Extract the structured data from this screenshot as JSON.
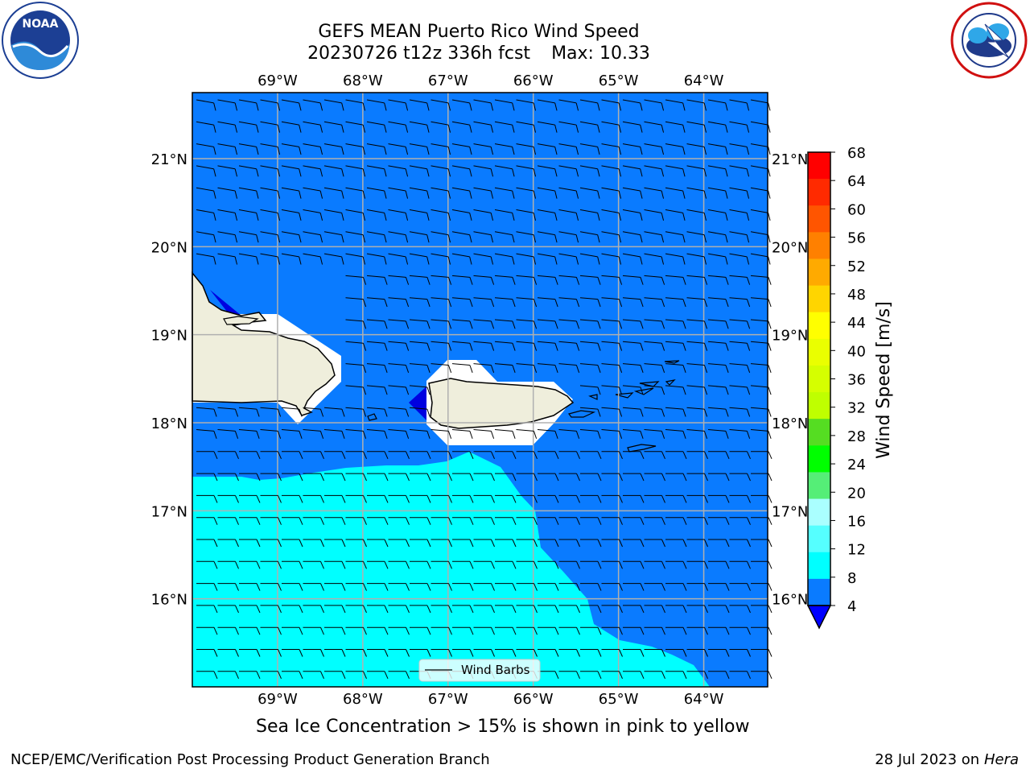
{
  "title": {
    "line1": "GEFS MEAN Puerto Rico Wind Speed",
    "line2_run": "20230726 t12z 336h fcst",
    "line2_max": "Max: 10.33"
  },
  "logos": {
    "noaa_text": "NOAA",
    "noaa_ring_text": "NATIONAL OCEANIC AND ATMOSPHERIC ADMINISTRATION · U.S. DEPARTMENT OF COMMERCE",
    "nws_ring_text": "NATIONAL WEATHER SERVICE"
  },
  "map": {
    "lon_labels": [
      "69°W",
      "68°W",
      "67°W",
      "66°W",
      "65°W",
      "64°W"
    ],
    "lat_labels": [
      "21°N",
      "20°N",
      "19°N",
      "18°N",
      "17°N",
      "16°N"
    ],
    "lon_range": [
      -70.0,
      -63.25
    ],
    "lat_range": [
      15.0,
      21.75
    ],
    "legend_label": "Wind Barbs",
    "colors": {
      "band_4_8": "#0a7bff",
      "band_8_12": "#00ffff",
      "land": "#efeedc",
      "below_min": "#0000e0"
    }
  },
  "colorbar": {
    "label": "Wind Speed [m/s]",
    "ticks": [
      "68",
      "64",
      "60",
      "56",
      "52",
      "48",
      "44",
      "40",
      "36",
      "32",
      "28",
      "24",
      "20",
      "16",
      "12",
      "8",
      "4"
    ],
    "colors_top_to_bottom": [
      "#ff0000",
      "#ff2a00",
      "#ff5500",
      "#ff8000",
      "#ffaa00",
      "#ffd500",
      "#ffff00",
      "#eaff00",
      "#d5ff00",
      "#bfff00",
      "#55dd22",
      "#00ff00",
      "#55ee77",
      "#aaffff",
      "#55ffff",
      "#00ffff",
      "#0a7bff"
    ],
    "extend_color": "#0000ff"
  },
  "captions": {
    "sea_ice": "Sea Ice Concentration > 15% is shown in pink to yellow",
    "footer_left": "NCEP/EMC/Verification Post Processing Product Generation Branch",
    "footer_right_date": "28 Jul 2023 on",
    "footer_right_host": "Hera"
  }
}
